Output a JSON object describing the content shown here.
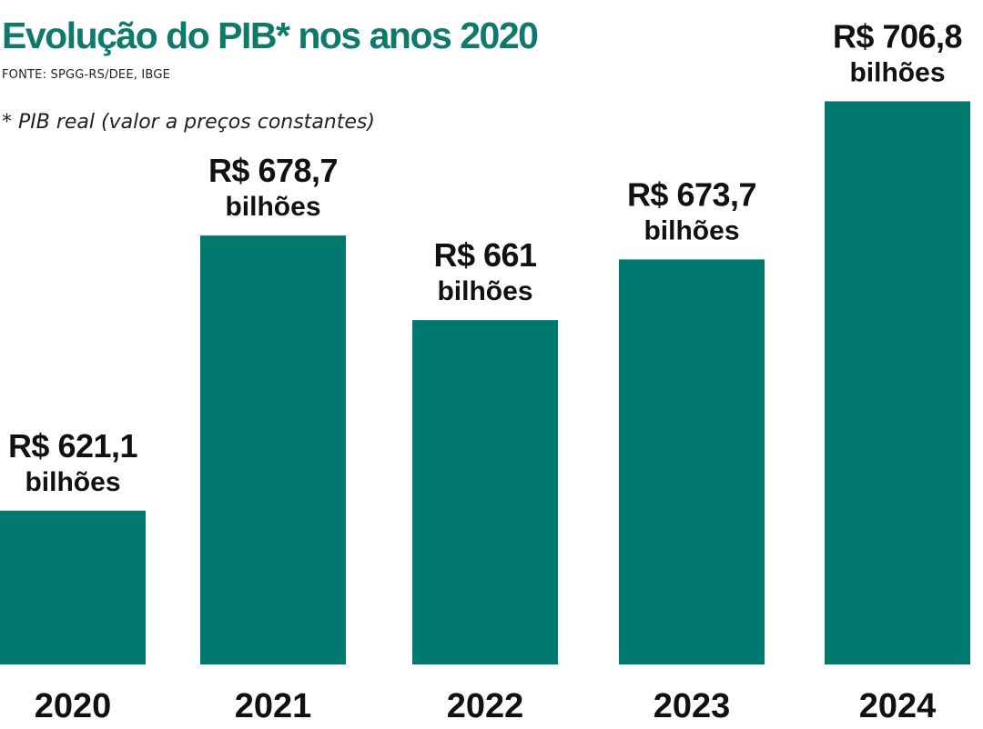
{
  "header": {
    "title": "Evolução do PIB* nos anos 2020",
    "source": "FONTE: SPGG-RS/DEE, IBGE",
    "note": "* PIB real (valor a preços constantes)"
  },
  "colors": {
    "bar": "#007a6e",
    "title": "#0f7a6c",
    "text": "#111111"
  },
  "chart_data": {
    "type": "bar",
    "title": "Evolução do PIB* nos anos 2020",
    "categories": [
      "2020",
      "2021",
      "2022",
      "2023",
      "2024"
    ],
    "values": [
      621.1,
      678.7,
      661,
      673.7,
      706.8
    ],
    "value_labels": [
      "R$ 621,1",
      "R$ 678,7",
      "R$ 661",
      "R$ 673,7",
      "R$ 706,8"
    ],
    "unit_label": "bilhões",
    "xlabel": "",
    "ylabel": "",
    "grid": false,
    "legend": "none"
  }
}
